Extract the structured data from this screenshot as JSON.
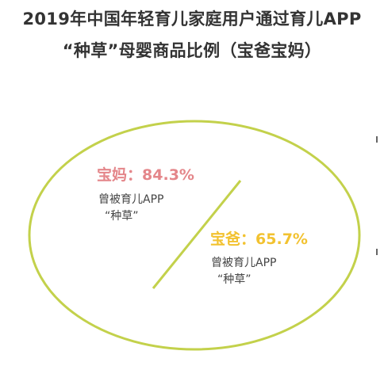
{
  "title_line1": "2019年中国年轻育儿家庭用户通过育儿APP",
  "title_line2": "“种草”母婴商品比例（宝爸宝妈）",
  "colors": {
    "ellipse": "#c3d14b",
    "mom": "#e4868a",
    "dad": "#f2c230",
    "text": "#333333"
  },
  "chart_data": {
    "type": "other",
    "title": "2019年中国年轻育儿家庭用户通过育儿APP“种草”母婴商品比例（宝爸宝妈）",
    "categories": [
      "宝妈",
      "宝爸"
    ],
    "values": [
      84.3,
      65.7
    ],
    "unit": "%",
    "labels": [
      {
        "name": "宝妈",
        "sep": "：",
        "value_text": "84.3%",
        "note_line1": "曾被育儿APP",
        "note_line2": "“种草”"
      },
      {
        "name": "宝爸",
        "sep": "：",
        "value_text": "65.7%",
        "note_line1": "曾被育儿APP",
        "note_line2": "“种草”"
      }
    ]
  }
}
